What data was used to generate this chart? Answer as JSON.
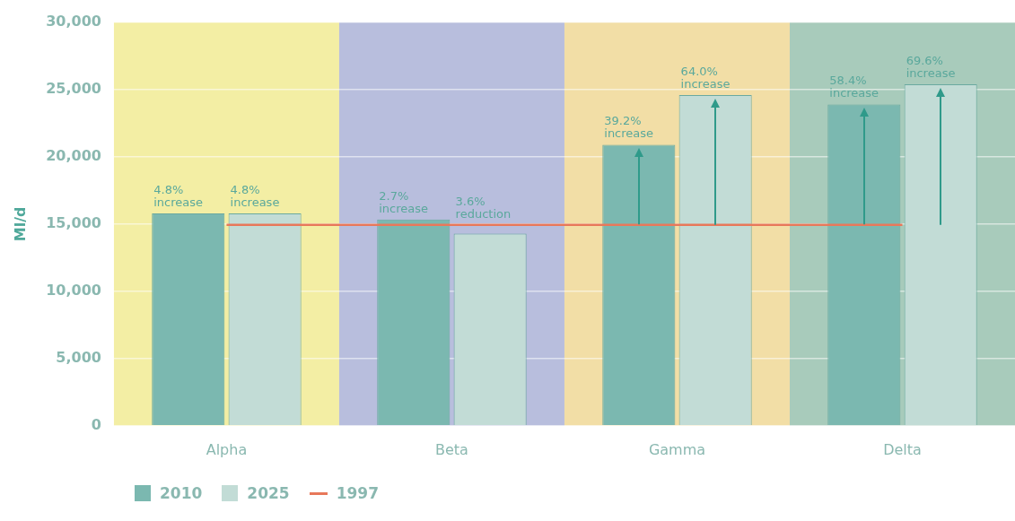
{
  "chart_data": {
    "type": "bar",
    "ylabel": "Ml/d",
    "categories": [
      "Alpha",
      "Beta",
      "Gamma",
      "Delta"
    ],
    "series": [
      {
        "name": "2010",
        "color": "#7bb8b0",
        "values": [
          15800,
          15350,
          20900,
          23900
        ]
      },
      {
        "name": "2025",
        "color": "#c2dcd6",
        "values": [
          15800,
          14300,
          24600,
          25400
        ]
      },
      {
        "name": "1997",
        "type": "line",
        "color": "#e8785a",
        "values": [
          14950,
          14950,
          14950,
          14950
        ]
      }
    ],
    "ylim": [
      0,
      30000
    ],
    "yticks": [
      0,
      {
        "value": 5000,
        "label": "5,000"
      },
      {
        "value": 10000,
        "label": "10,000"
      },
      {
        "value": 15000,
        "label": "15,000"
      },
      {
        "value": 20000,
        "label": "20,000"
      },
      {
        "value": 25000,
        "label": "25,000"
      },
      {
        "value": 30000,
        "label": "30,000"
      }
    ],
    "grid": "y",
    "legend": "bottom left",
    "bands": [
      {
        "axis": "x",
        "from": "Alpha",
        "to": "Alpha",
        "color": "#f3eea4"
      },
      {
        "axis": "x",
        "from": "Beta",
        "to": "Beta",
        "color": "#b8bedd"
      },
      {
        "axis": "x",
        "from": "Gamma",
        "to": "Gamma",
        "color": "#f2dea6"
      },
      {
        "axis": "x",
        "from": "Delta",
        "to": "Delta",
        "color": "#a8cbbb"
      }
    ],
    "annotations": [
      {
        "text": "4.8% increase",
        "x": "Alpha",
        "y": 15800
      },
      {
        "text": "4.8% increase",
        "x": "Alpha",
        "y": 15800
      },
      {
        "text": "2.7% increase",
        "x": "Beta",
        "y": 15350
      },
      {
        "text": "3.6% reduction",
        "x": "Beta",
        "y": 14950
      },
      {
        "text": "39.2% increase",
        "x": "Gamma",
        "y": 20900
      },
      {
        "text": "64.0% increase",
        "x": "Gamma",
        "y": 24600
      },
      {
        "text": "58.4% increase",
        "x": "Delta",
        "y": 23900
      },
      {
        "text": "69.6% increase",
        "x": "Delta",
        "y": 25400
      }
    ]
  }
}
